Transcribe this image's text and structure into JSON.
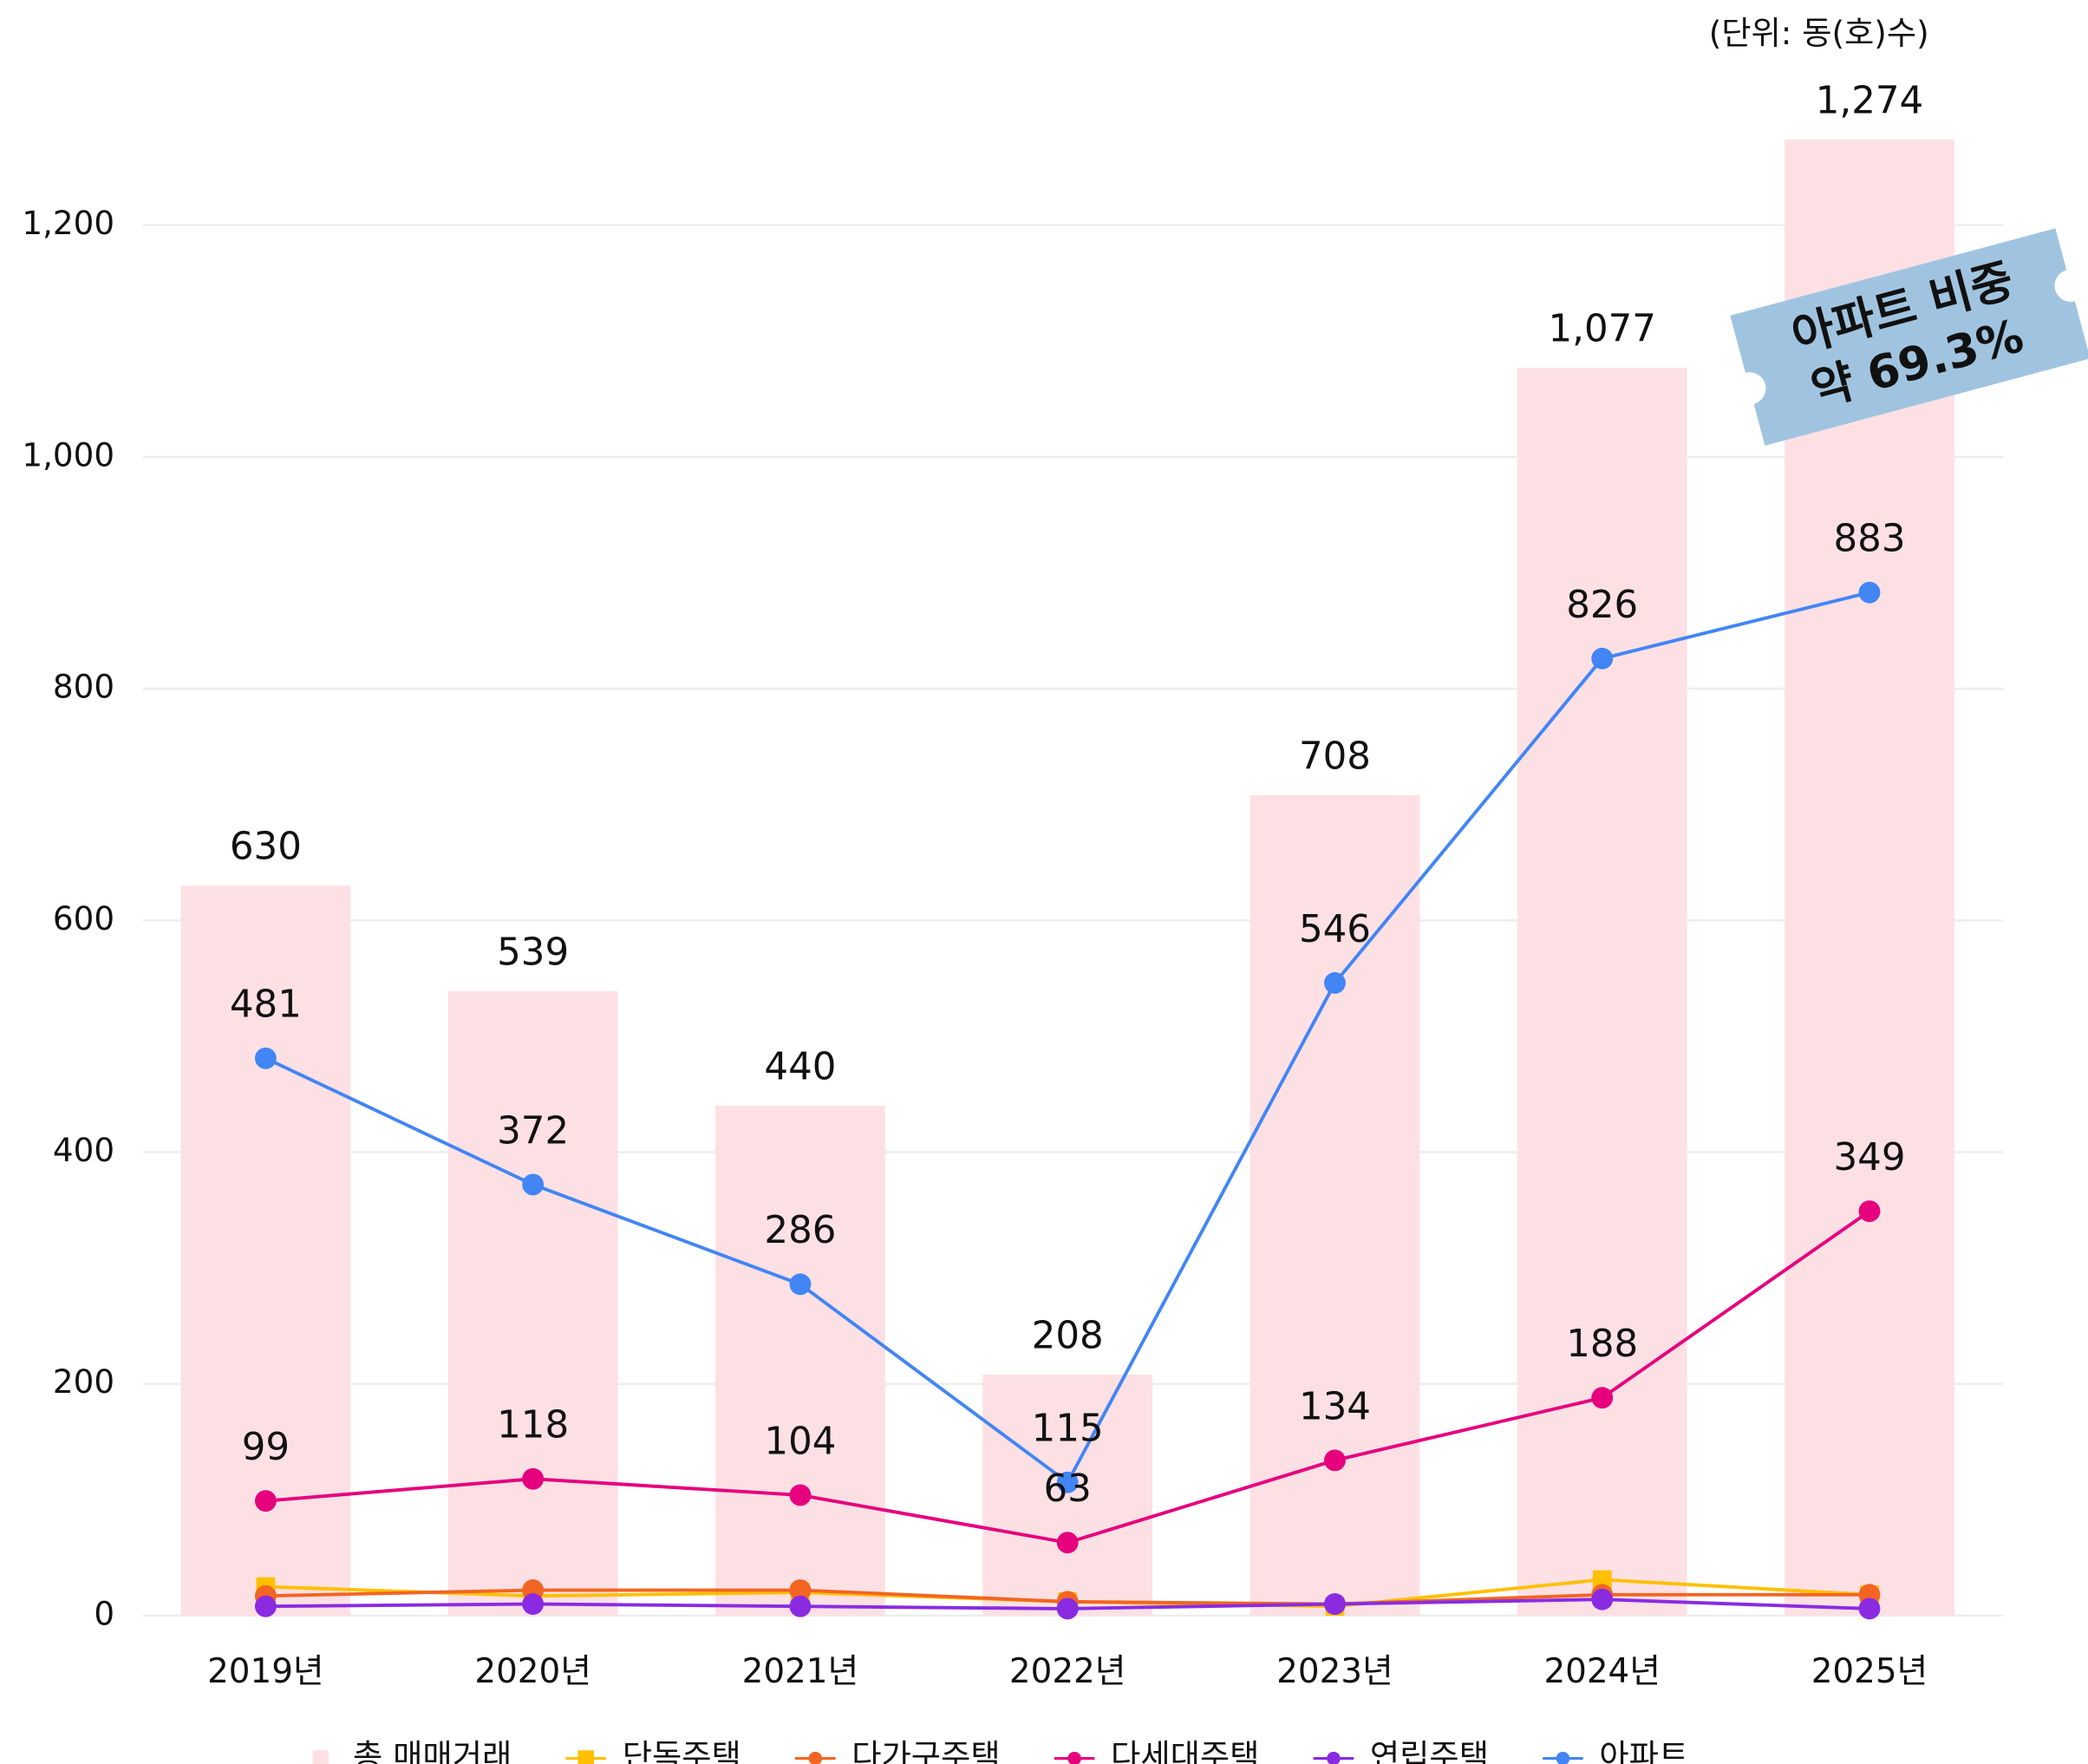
{
  "chart_data": {
    "type": "bar",
    "unit_note": "(단위: 동(호)수)",
    "categories": [
      "2019년",
      "2020년",
      "2021년",
      "2022년",
      "2023년",
      "2024년",
      "2025년"
    ],
    "ylim": [
      0,
      1300
    ],
    "yticks": [
      0,
      200,
      400,
      600,
      800,
      {
        "value": 1000,
        "label": "1,000"
      },
      {
        "value": 1200,
        "label": "1,200"
      }
    ],
    "grid": true,
    "annotation": [
      "아파트 비중",
      "약 69.3%"
    ],
    "series": [
      {
        "name": "총 매매거래",
        "type": "bar",
        "color": "#fde0e4",
        "values": [
          630,
          539,
          440,
          208,
          708,
          1077,
          1274
        ],
        "value_labels": [
          "630",
          "539",
          "440",
          "208",
          "708",
          "1,077",
          "1,274"
        ]
      },
      {
        "name": "단독주택",
        "type": "line",
        "marker": "square",
        "color": "#ffc000",
        "values": [
          25,
          17,
          20,
          12,
          8,
          31,
          18
        ]
      },
      {
        "name": "다가구주택",
        "type": "line",
        "marker": "circle",
        "color": "#f26522",
        "values": [
          17,
          22,
          22,
          12,
          10,
          18,
          18
        ]
      },
      {
        "name": "다세대주택",
        "type": "line",
        "marker": "circle",
        "color": "#e6007e",
        "values": [
          99,
          118,
          104,
          63,
          134,
          188,
          349
        ],
        "labels": true
      },
      {
        "name": "연립주택",
        "type": "line",
        "marker": "circle",
        "color": "#8a2be2",
        "values": [
          8,
          10,
          8,
          6,
          10,
          14,
          6
        ]
      },
      {
        "name": "아파트",
        "type": "line",
        "marker": "circle",
        "color": "#4285f4",
        "values": [
          481,
          372,
          286,
          115,
          546,
          826,
          883
        ],
        "labels": true
      }
    ]
  }
}
